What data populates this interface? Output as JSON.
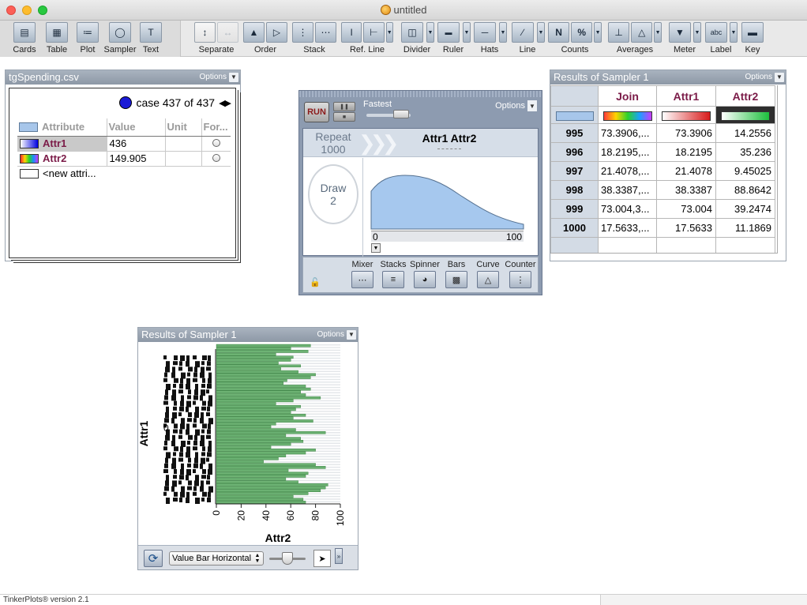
{
  "window": {
    "title": "untitled"
  },
  "toolbar": {
    "objects": [
      {
        "label": "Cards",
        "icon": "cards-icon"
      },
      {
        "label": "Table",
        "icon": "table-icon"
      },
      {
        "label": "Plot",
        "icon": "plot-icon"
      },
      {
        "label": "Sampler",
        "icon": "sampler-icon"
      },
      {
        "label": "Text",
        "icon": "text-icon"
      }
    ],
    "plot_tools": [
      {
        "label": "Separate",
        "icon": "separate-icon"
      },
      {
        "label": "Order",
        "icon": "order-icon"
      },
      {
        "label": "Stack",
        "icon": "stack-icon"
      },
      {
        "label": "Ref. Line",
        "icon": "ref-line-icon"
      },
      {
        "label": "Divider",
        "icon": "divider-icon"
      },
      {
        "label": "Ruler",
        "icon": "ruler-icon"
      },
      {
        "label": "Hats",
        "icon": "hats-icon"
      },
      {
        "label": "Line",
        "icon": "line-icon"
      },
      {
        "label": "Counts",
        "icon": "counts-icon",
        "glyphs": [
          "N",
          "%"
        ]
      },
      {
        "label": "Averages",
        "icon": "averages-icon"
      },
      {
        "label": "Meter",
        "icon": "meter-icon"
      },
      {
        "label": "Label",
        "icon": "label-icon",
        "glyph": "abc"
      },
      {
        "label": "Key",
        "icon": "key-icon"
      }
    ]
  },
  "cards": {
    "title": "tgSpending.csv",
    "options_label": "Options",
    "case_text": "case 437 of 437",
    "columns": [
      "Attribute",
      "Value",
      "Unit",
      "For..."
    ],
    "rows": [
      {
        "attribute": "Attr1",
        "value": "436",
        "unit": ""
      },
      {
        "attribute": "Attr2",
        "value": "149.905",
        "unit": ""
      }
    ],
    "new_attribute": "<new attri..."
  },
  "sampler": {
    "run_label": "RUN",
    "speed_label": "Fastest",
    "options_label": "Options",
    "repeat_label": "Repeat",
    "repeat_value": "1000",
    "attributes": "Attr1 Attr2",
    "draw_label": "Draw",
    "draw_value": "2",
    "axis_min": "0",
    "axis_max": "100",
    "devices": [
      "Mixer",
      "Stacks",
      "Spinner",
      "Bars",
      "Curve",
      "Counter"
    ]
  },
  "results_table": {
    "title": "Results of Sampler 1",
    "options_label": "Options",
    "columns": [
      "Join",
      "Attr1",
      "Attr2"
    ],
    "rows": [
      {
        "id": "995",
        "join": "73.3906,...",
        "attr1": "73.3906",
        "attr2": "14.2556"
      },
      {
        "id": "996",
        "join": "18.2195,...",
        "attr1": "18.2195",
        "attr2": "35.236"
      },
      {
        "id": "997",
        "join": "21.4078,...",
        "attr1": "21.4078",
        "attr2": "9.45025"
      },
      {
        "id": "998",
        "join": "38.3387,...",
        "attr1": "38.3387",
        "attr2": "88.8642"
      },
      {
        "id": "999",
        "join": "73.004,3...",
        "attr1": "73.004",
        "attr2": "39.2474"
      },
      {
        "id": "1000",
        "join": "17.5633,...",
        "attr1": "17.5633",
        "attr2": "11.1869"
      }
    ]
  },
  "plot": {
    "title": "Results of Sampler 1",
    "options_label": "Options",
    "display_mode": "Value Bar Horizontal",
    "chart_data": {
      "type": "bar",
      "orientation": "horizontal",
      "xlabel": "Attr2",
      "ylabel": "Attr1",
      "xlim": [
        0,
        100
      ],
      "x_ticks": [
        "0",
        "20",
        "40",
        "60",
        "80",
        "100"
      ],
      "y_ticks_note": "0",
      "bar_color": "#3e9a46",
      "values": [
        76,
        60,
        74,
        48,
        62,
        60,
        50,
        68,
        52,
        66,
        80,
        76,
        57,
        54,
        72,
        76,
        68,
        72,
        84,
        62,
        48,
        68,
        64,
        60,
        72,
        62,
        78,
        48,
        44,
        64,
        88,
        56,
        68,
        70,
        60,
        44,
        80,
        72,
        56,
        50,
        38,
        80,
        88,
        58,
        74,
        72,
        56,
        66,
        90,
        88,
        84,
        74,
        62,
        70,
        72
      ]
    }
  },
  "status": {
    "text": "TinkerPlots® version 2.1"
  }
}
